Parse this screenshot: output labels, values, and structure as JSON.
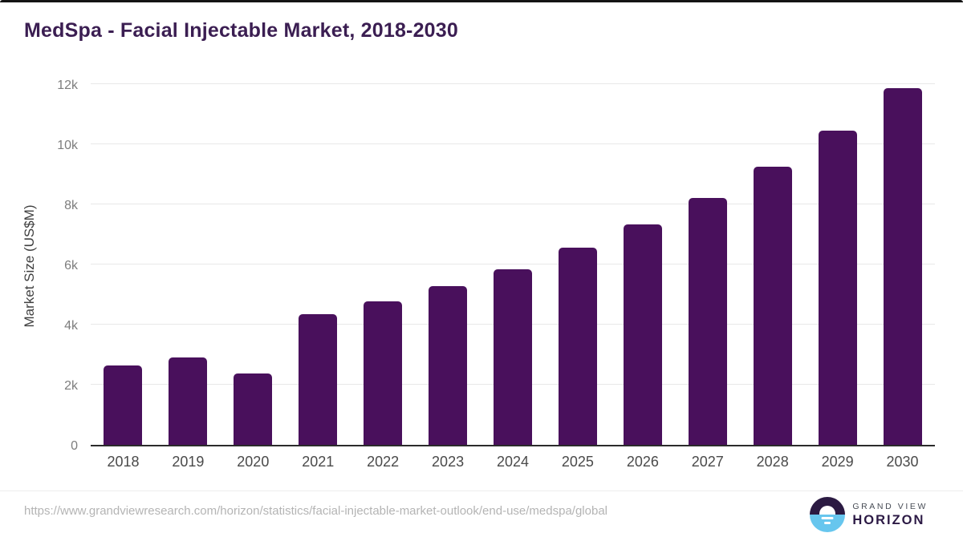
{
  "header": {
    "title": "MedSpa - Facial Injectable Market, 2018-2030",
    "title_color": "#3b1e52"
  },
  "chart_data": {
    "type": "bar",
    "title": "MedSpa - Facial Injectable Market, 2018-2030",
    "categories": [
      "2018",
      "2019",
      "2020",
      "2021",
      "2022",
      "2023",
      "2024",
      "2025",
      "2026",
      "2027",
      "2028",
      "2029",
      "2030"
    ],
    "values": [
      2650,
      2900,
      2370,
      4340,
      4770,
      5270,
      5850,
      6560,
      7330,
      8210,
      9250,
      10460,
      11880
    ],
    "xlabel": "",
    "ylabel": "Market Size (US$M)",
    "ylim": [
      0,
      12000
    ],
    "ytick_step": 2000,
    "ytick_labels": [
      "0",
      "2k",
      "4k",
      "6k",
      "8k",
      "10k",
      "12k"
    ],
    "grid": true,
    "legend": "none",
    "bar_color": "#49105c",
    "gridline_color": "#e8e8e8",
    "axis_color": "#2b2b2b"
  },
  "footer": {
    "source_url": "https://www.grandviewresearch.com/horizon/statistics/facial-injectable-market-outlook/end-use/medspa/global",
    "logo": {
      "brand_top": "GRAND VIEW",
      "brand_bottom": "HORIZON",
      "dark_color": "#2b1a42",
      "blue_color": "#67c6ee"
    }
  }
}
